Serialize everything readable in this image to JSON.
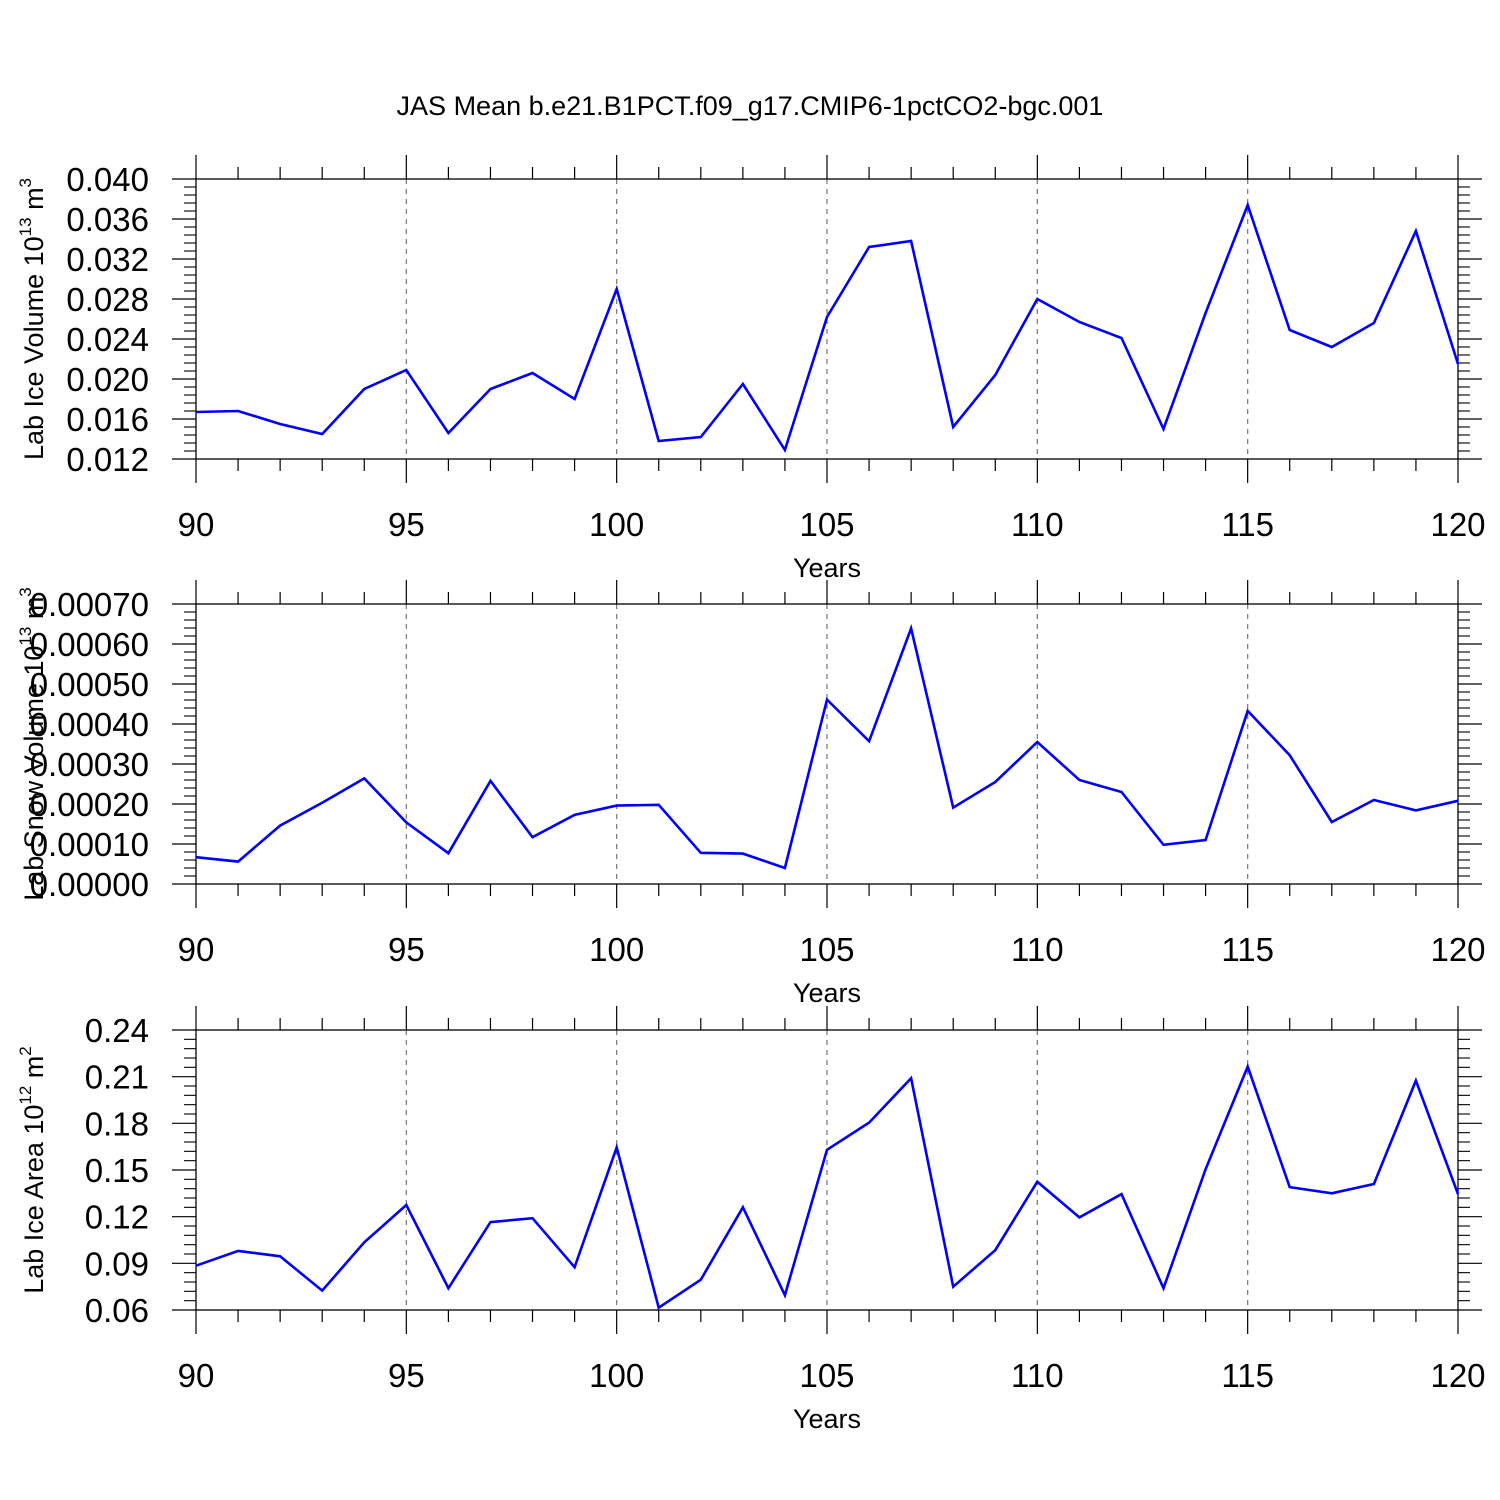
{
  "title": "JAS Mean b.e21.B1PCT.f09_g17.CMIP6-1pctCO2-bgc.001",
  "colors": {
    "line": "#0000ff",
    "axis": "#000000",
    "grid": "#808080"
  },
  "chart_data": [
    {
      "type": "line",
      "ylabel": {
        "main": "Lab Ice Volume 10",
        "exponent": "13",
        "unit": " m",
        "unit_exponent": "3"
      },
      "xlabel": "Years",
      "xlim": [
        90,
        120
      ],
      "ylim": [
        0.012,
        0.04
      ],
      "xticks": [
        90,
        95,
        100,
        105,
        110,
        115,
        120
      ],
      "xtick_labels": [
        "90",
        "95",
        "100",
        "105",
        "110",
        "115",
        "120"
      ],
      "yticks": [
        0.012,
        0.016,
        0.02,
        0.024,
        0.028,
        0.032,
        0.036,
        0.04
      ],
      "ytick_labels": [
        "0.012",
        "0.016",
        "0.020",
        "0.024",
        "0.028",
        "0.032",
        "0.036",
        "0.040"
      ],
      "grid": "vertical dashed at major x ticks",
      "series": [
        {
          "x": [
            90,
            91,
            92,
            93,
            94,
            95,
            96,
            97,
            98,
            99,
            100,
            101,
            102,
            103,
            104,
            105,
            106,
            107,
            108,
            109,
            110,
            111,
            112,
            113,
            114,
            115,
            116,
            117,
            118,
            119,
            120
          ],
          "values": [
            0.0167,
            0.0168,
            0.0155,
            0.0145,
            0.019,
            0.0209,
            0.0146,
            0.019,
            0.0206,
            0.018,
            0.029,
            0.0138,
            0.0142,
            0.0195,
            0.0129,
            0.0262,
            0.0332,
            0.0338,
            0.0152,
            0.0204,
            0.028,
            0.0257,
            0.0241,
            0.015,
            0.0266,
            0.0374,
            0.0249,
            0.0232,
            0.0256,
            0.0348,
            0.0215
          ]
        }
      ]
    },
    {
      "type": "line",
      "ylabel": {
        "main": "Lab Snow Volume 10",
        "exponent": "13",
        "unit": " m",
        "unit_exponent": "3"
      },
      "xlabel": "Years",
      "xlim": [
        90,
        120
      ],
      "ylim": [
        0.0,
        0.0007
      ],
      "xticks": [
        90,
        95,
        100,
        105,
        110,
        115,
        120
      ],
      "xtick_labels": [
        "90",
        "95",
        "100",
        "105",
        "110",
        "115",
        "120"
      ],
      "yticks": [
        0.0,
        0.0001,
        0.0002,
        0.0003,
        0.0004,
        0.0005,
        0.0006,
        0.0007
      ],
      "ytick_labels": [
        "0.00000",
        "0.00010",
        "0.00020",
        "0.00030",
        "0.00040",
        "0.00050",
        "0.00060",
        "0.00070"
      ],
      "grid": "vertical dashed at major x ticks",
      "series": [
        {
          "x": [
            90,
            91,
            92,
            93,
            94,
            95,
            96,
            97,
            98,
            99,
            100,
            101,
            102,
            103,
            104,
            105,
            106,
            107,
            108,
            109,
            110,
            111,
            112,
            113,
            114,
            115,
            116,
            117,
            118,
            119,
            120
          ],
          "values": [
            6.7e-05,
            5.6e-05,
            0.000146,
            0.000203,
            0.000264,
            0.000154,
            7.7e-05,
            0.000258,
            0.000117,
            0.000173,
            0.000196,
            0.000198,
            7.8e-05,
            7.6e-05,
            4e-05,
            0.000461,
            0.000357,
            0.000639,
            0.000191,
            0.000255,
            0.000355,
            0.00026,
            0.00023,
            9.8e-05,
            0.00011,
            0.000433,
            0.000322,
            0.000155,
            0.00021,
            0.000184,
            0.000208
          ]
        }
      ]
    },
    {
      "type": "line",
      "ylabel": {
        "main": "Lab Ice Area 10",
        "exponent": "12",
        "unit": " m",
        "unit_exponent": "2"
      },
      "xlabel": "Years",
      "xlim": [
        90,
        120
      ],
      "ylim": [
        0.06,
        0.24
      ],
      "xticks": [
        90,
        95,
        100,
        105,
        110,
        115,
        120
      ],
      "xtick_labels": [
        "90",
        "95",
        "100",
        "105",
        "110",
        "115",
        "120"
      ],
      "yticks": [
        0.06,
        0.09,
        0.12,
        0.15,
        0.18,
        0.21,
        0.24
      ],
      "ytick_labels": [
        "0.06",
        "0.09",
        "0.12",
        "0.15",
        "0.18",
        "0.21",
        "0.24"
      ],
      "grid": "vertical dashed at major x ticks",
      "series": [
        {
          "x": [
            90,
            91,
            92,
            93,
            94,
            95,
            96,
            97,
            98,
            99,
            100,
            101,
            102,
            103,
            104,
            105,
            106,
            107,
            108,
            109,
            110,
            111,
            112,
            113,
            114,
            115,
            116,
            117,
            118,
            119,
            120
          ],
          "values": [
            0.0885,
            0.098,
            0.0945,
            0.0725,
            0.1035,
            0.1275,
            0.074,
            0.1165,
            0.119,
            0.0875,
            0.1645,
            0.0615,
            0.0795,
            0.126,
            0.0695,
            0.163,
            0.1805,
            0.209,
            0.075,
            0.0985,
            0.1425,
            0.1195,
            0.1345,
            0.074,
            0.1505,
            0.2165,
            0.139,
            0.135,
            0.141,
            0.2075,
            0.1345
          ]
        }
      ]
    }
  ]
}
